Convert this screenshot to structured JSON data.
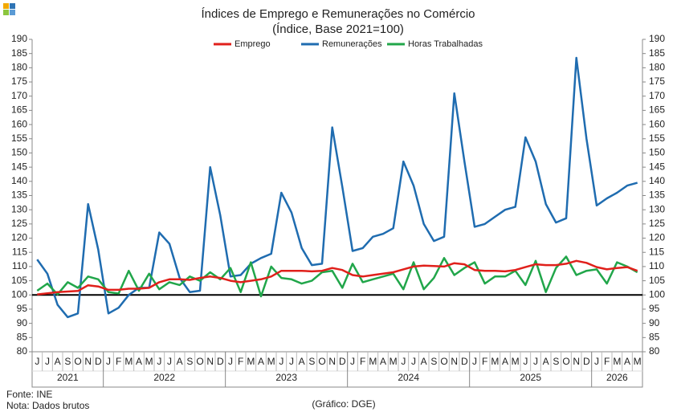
{
  "chart_data": {
    "type": "line",
    "title": "Índices de Emprego e Remunerações no Comércio",
    "subtitle": "(Índice, Base 2021=100)",
    "groups": [
      {
        "label": "2021",
        "categories": [
          "J",
          "J",
          "A",
          "S",
          "O",
          "N",
          "D"
        ]
      },
      {
        "label": "2022",
        "categories": [
          "J",
          "F",
          "M",
          "A",
          "M",
          "J",
          "J",
          "A",
          "S",
          "O",
          "N",
          "D"
        ]
      },
      {
        "label": "2023",
        "categories": [
          "J",
          "F",
          "M",
          "A",
          "M",
          "J",
          "J",
          "A",
          "S",
          "O",
          "N",
          "D"
        ]
      },
      {
        "label": "2024",
        "categories": [
          "J",
          "F",
          "M",
          "A",
          "M",
          "J",
          "J",
          "A",
          "S",
          "O",
          "N",
          "D"
        ]
      },
      {
        "label": "2025",
        "categories": [
          "J",
          "F",
          "M",
          "A",
          "M",
          "J",
          "J",
          "A",
          "S",
          "O",
          "N",
          "D"
        ]
      },
      {
        "label": "2026",
        "categories": [
          "J",
          "F",
          "M",
          "A",
          "M"
        ]
      }
    ],
    "series": [
      {
        "name": "Emprego",
        "color": "#e0201b",
        "values": [
          100.2,
          100.6,
          101.0,
          101.2,
          101.4,
          103.4,
          103.0,
          101.8,
          101.8,
          102.2,
          102.2,
          102.5,
          104.5,
          105.5,
          105.5,
          105.3,
          106.0,
          106.5,
          106.0,
          105.0,
          104.5,
          105.0,
          105.5,
          106.5,
          108.5,
          108.5,
          108.5,
          108.3,
          108.5,
          109.5,
          108.8,
          107.0,
          106.5,
          107.0,
          107.5,
          108.0,
          109.0,
          110.0,
          110.3,
          110.2,
          110.0,
          111.2,
          110.8,
          108.8,
          108.5,
          108.5,
          108.3,
          108.8,
          109.8,
          110.8,
          110.5,
          110.5,
          111.0,
          112.0,
          111.3,
          109.8,
          109.0,
          109.5,
          109.8,
          108.5
        ]
      },
      {
        "name": "Remunerações",
        "color": "#1f6cb0",
        "values": [
          112.5,
          107.5,
          96.5,
          92.2,
          93.5,
          132.0,
          116.0,
          93.5,
          95.5,
          100.0,
          102.5,
          102.5,
          122.0,
          118.0,
          106.0,
          101.0,
          101.5,
          145.0,
          128.0,
          106.5,
          107.0,
          111.0,
          113.0,
          114.5,
          136.0,
          129.0,
          116.5,
          110.5,
          111.0,
          159.0,
          138.0,
          115.5,
          116.5,
          120.5,
          121.5,
          123.5,
          147.0,
          138.5,
          125.0,
          119.0,
          120.5,
          171.0,
          147.0,
          124.0,
          125.0,
          127.5,
          130.0,
          131.0,
          155.5,
          147.0,
          132.0,
          125.5,
          127.0,
          183.5,
          155.0,
          131.5,
          134.0,
          136.0,
          138.5,
          139.5
        ]
      },
      {
        "name": "Horas Trabalhadas",
        "color": "#21a64a",
        "values": [
          101.5,
          104.0,
          100.2,
          104.5,
          102.5,
          106.5,
          105.5,
          101.0,
          100.5,
          108.5,
          101.5,
          107.5,
          102.0,
          104.5,
          103.5,
          106.5,
          105.0,
          108.0,
          105.5,
          109.5,
          101.0,
          111.5,
          99.5,
          110.0,
          106.0,
          105.5,
          104.0,
          105.0,
          108.0,
          108.5,
          102.5,
          111.0,
          104.5,
          105.5,
          106.5,
          107.5,
          102.0,
          111.5,
          102.0,
          106.0,
          113.0,
          107.0,
          109.5,
          111.5,
          104.0,
          106.5,
          106.5,
          108.5,
          103.5,
          112.0,
          101.0,
          109.5,
          113.5,
          107.0,
          108.5,
          109.0,
          104.0,
          111.5,
          110.0,
          108.0
        ]
      }
    ],
    "ylim": [
      80,
      190
    ],
    "yticks": [
      80,
      85,
      90,
      95,
      100,
      105,
      110,
      115,
      120,
      125,
      130,
      135,
      140,
      145,
      150,
      155,
      160,
      165,
      170,
      175,
      180,
      185,
      190
    ],
    "y2lim": [
      80,
      190
    ],
    "y2ticks": [
      80,
      85,
      90,
      95,
      100,
      105,
      110,
      115,
      120,
      125,
      130,
      135,
      140,
      145,
      150,
      155,
      160,
      165,
      170,
      175,
      180,
      185,
      190
    ],
    "reference_line": 100,
    "legend": "top",
    "source": "Fonte: INE",
    "note": "Nota: Dados brutos",
    "credit": "(Gráfico: DGE)"
  }
}
